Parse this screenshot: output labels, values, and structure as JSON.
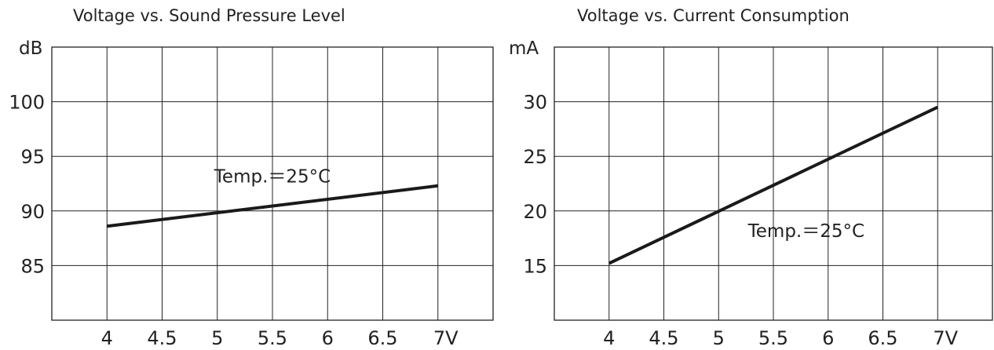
{
  "chart_data": [
    {
      "type": "line",
      "title": "Voltage vs. Sound Pressure Level",
      "ylabel": "dB",
      "xlabel": "",
      "x_ticks": [
        4,
        4.5,
        5,
        5.5,
        6,
        6.5,
        7
      ],
      "x_tick_labels": [
        "4",
        "4.5",
        "5",
        "5.5",
        "6",
        "6.5",
        "7V"
      ],
      "xlim": [
        3.5,
        7.5
      ],
      "y_ticks": [
        85,
        90,
        95,
        100
      ],
      "y_tick_labels": [
        "85",
        "90",
        "95",
        "100"
      ],
      "ylim": [
        80,
        105
      ],
      "grid": true,
      "annotation": {
        "text": "Temp.＝25°C",
        "x": 5.5,
        "y": 92.6
      },
      "series": [
        {
          "x": [
            4,
            7
          ],
          "y": [
            88.6,
            92.3
          ]
        }
      ],
      "color": "#1a1a1a"
    },
    {
      "type": "line",
      "title": "Voltage vs. Current Consumption",
      "ylabel": "mA",
      "xlabel": "",
      "x_ticks": [
        4,
        4.5,
        5,
        5.5,
        6,
        6.5,
        7
      ],
      "x_tick_labels": [
        "4",
        "4.5",
        "5",
        "5.5",
        "6",
        "6.5",
        "7V"
      ],
      "xlim": [
        3.5,
        7.5
      ],
      "y_ticks": [
        15,
        20,
        25,
        30
      ],
      "y_tick_labels": [
        "15",
        "20",
        "25",
        "30"
      ],
      "ylim": [
        10,
        35
      ],
      "grid": true,
      "annotation": {
        "text": "Temp.＝25°C",
        "x": 5.8,
        "y": 17.6
      },
      "series": [
        {
          "x": [
            4,
            7
          ],
          "y": [
            15.2,
            29.5
          ]
        }
      ],
      "color": "#1a1a1a"
    }
  ]
}
